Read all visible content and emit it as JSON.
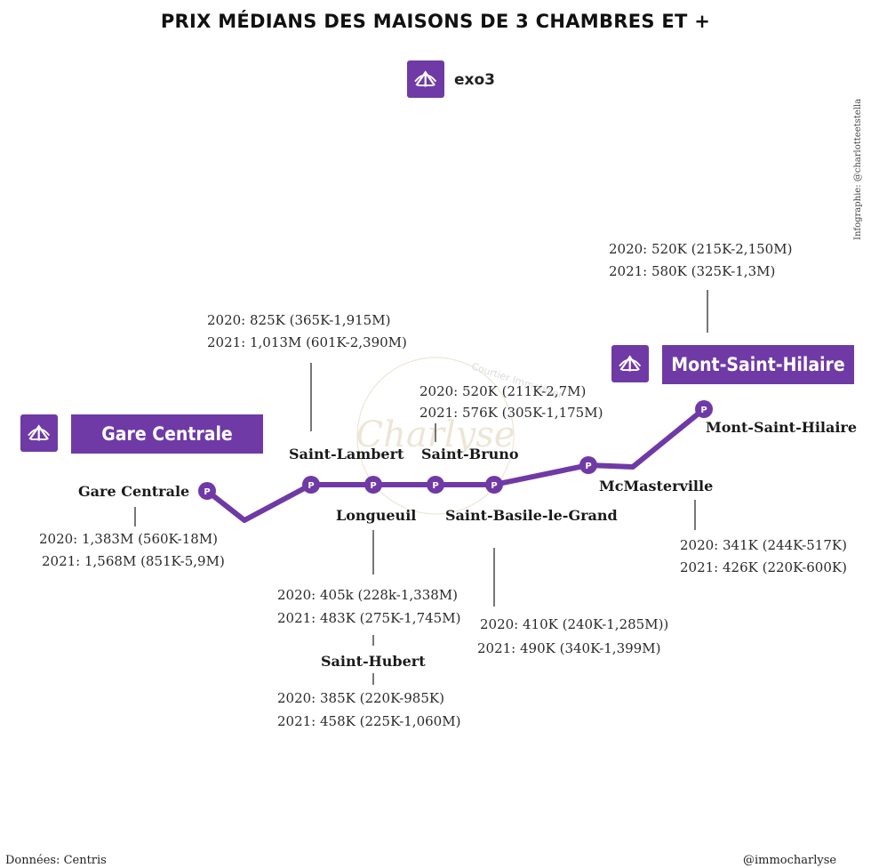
{
  "title": "PRIX MÉDIANS DES MAISONS DE 3 CHAMBRES ET +",
  "brand": {
    "name": "exo3",
    "icon": "exo-logo-icon"
  },
  "credit_vertical": "Infographie: @charlotteetstella",
  "watermark": {
    "main": "Charlyse",
    "arc": "Courtier Immobilier"
  },
  "line_color": "#6f3aa6",
  "banners": {
    "west": "Gare Centrale",
    "east": "Mont-Saint-Hilaire"
  },
  "stations": [
    {
      "name": "Gare Centrale",
      "p2020": "2020: 1,383M (560K-18M)",
      "p2021": "2021: 1,568M (851K-5,9M)"
    },
    {
      "name": "Saint-Lambert",
      "p2020": "2020: 825K (365K-1,915M)",
      "p2021": "2021: 1,013M (601K-2,390M)"
    },
    {
      "name": "Longueuil",
      "p2020": "2020: 405k (228k-1,338M)",
      "p2021": "2021: 483K (275K-1,745M)"
    },
    {
      "name": "Saint-Hubert",
      "p2020": "2020: 385K (220K-985K)",
      "p2021": "2021: 458K (225K-1,060M)"
    },
    {
      "name": "Saint-Bruno",
      "p2020": "2020: 520K (211K-2,7M)",
      "p2021": "2021: 576K (305K-1,175M)"
    },
    {
      "name": "Saint-Basile-le-Grand",
      "p2020": "2020: 410K (240K-1,285M))",
      "p2021": "2021: 490K (340K-1,399M)"
    },
    {
      "name": "McMasterville",
      "p2020": "2020: 341K (244K-517K)",
      "p2021": "2021: 426K (220K-600K)"
    },
    {
      "name": "Mont-Saint-Hilaire",
      "p2020": "2020: 520K (215K-2,150M)",
      "p2021": "2021: 580K (325K-1,3M)"
    }
  ],
  "station_marker": "P",
  "footer": {
    "source": "Données: Centris",
    "handle": "@immocharlyse"
  }
}
